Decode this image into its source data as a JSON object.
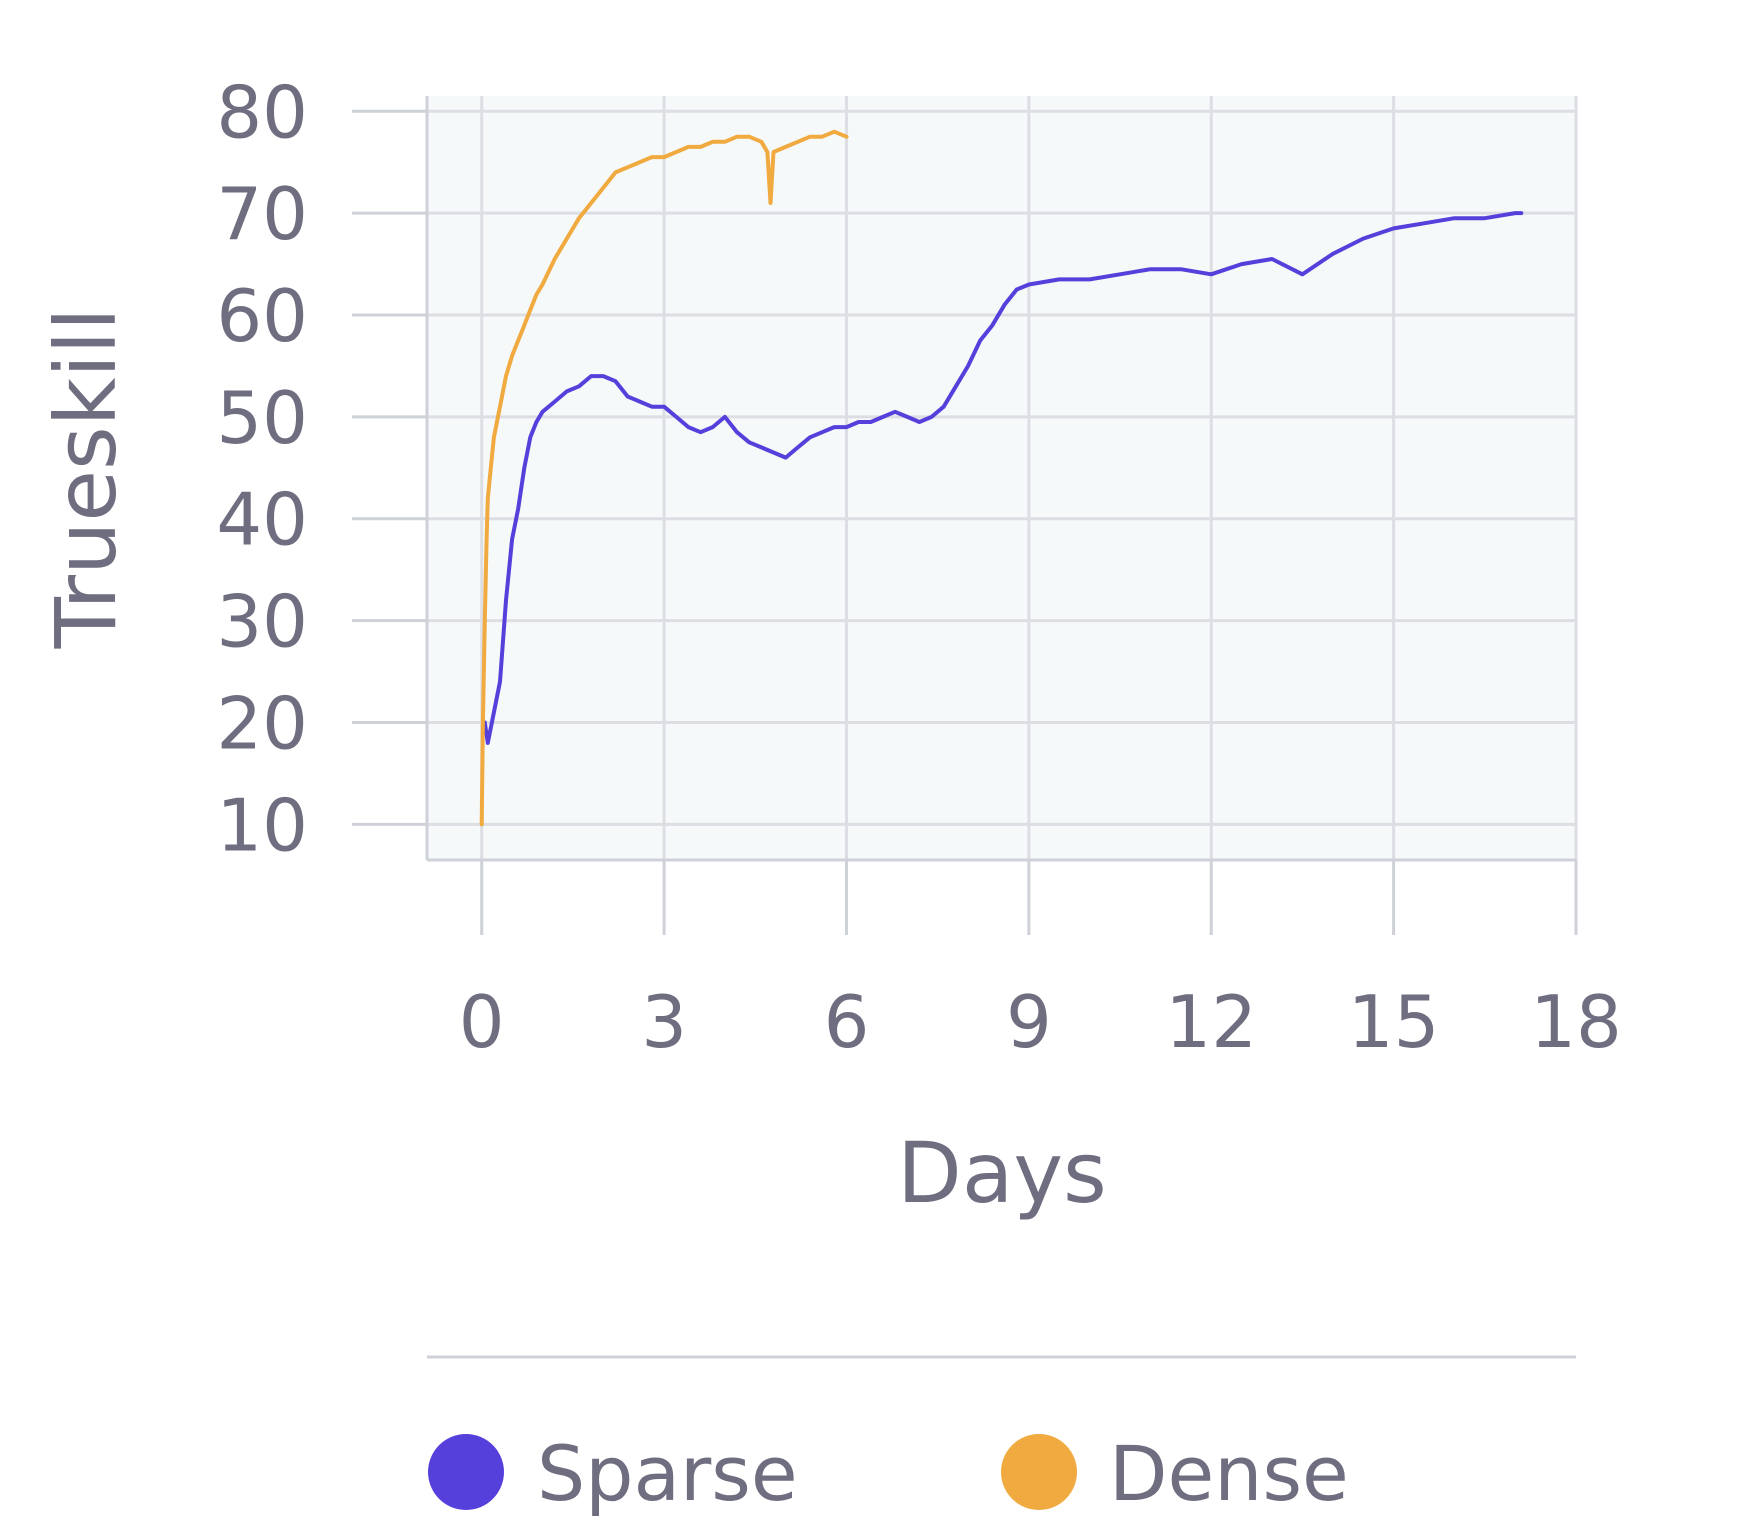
{
  "chart_data": {
    "type": "line",
    "title": "",
    "xlabel": "Days",
    "ylabel": "Trueskill",
    "xlim": [
      -0.9,
      18
    ],
    "ylim": [
      6.5,
      81.5
    ],
    "xticks": [
      "0",
      "3",
      "6",
      "9",
      "12",
      "15",
      "18"
    ],
    "yticks": [
      "10",
      "20",
      "30",
      "40",
      "50",
      "60",
      "70",
      "80"
    ],
    "grid": true,
    "legend_position": "bottom",
    "colors": {
      "sparse": "#5540db",
      "dense": "#f0aa3f",
      "plot_bg": "#f5f9fa"
    },
    "series": [
      {
        "name": "Sparse",
        "x": [
          0.05,
          0.1,
          0.2,
          0.3,
          0.4,
          0.5,
          0.6,
          0.7,
          0.8,
          0.9,
          1.0,
          1.2,
          1.4,
          1.6,
          1.8,
          2.0,
          2.2,
          2.4,
          2.6,
          2.8,
          3.0,
          3.2,
          3.4,
          3.6,
          3.8,
          4.0,
          4.2,
          4.4,
          4.6,
          4.8,
          5.0,
          5.2,
          5.4,
          5.6,
          5.8,
          6.0,
          6.2,
          6.4,
          6.6,
          6.8,
          7.0,
          7.2,
          7.4,
          7.6,
          7.8,
          8.0,
          8.2,
          8.4,
          8.6,
          8.8,
          9.0,
          9.5,
          10.0,
          10.5,
          11.0,
          11.5,
          12.0,
          12.5,
          13.0,
          13.5,
          14.0,
          14.5,
          15.0,
          15.5,
          16.0,
          16.5,
          17.0,
          17.1
        ],
        "values": [
          20,
          18,
          21,
          24,
          32,
          38,
          41,
          45,
          48,
          49.5,
          50.5,
          51.5,
          52.5,
          53,
          54,
          54,
          53.5,
          52,
          51.5,
          51,
          51,
          50,
          49,
          48.5,
          49,
          50,
          48.5,
          47.5,
          47,
          46.5,
          46,
          47,
          48,
          48.5,
          49,
          49,
          49.5,
          49.5,
          50,
          50.5,
          50,
          49.5,
          50,
          51,
          53,
          55,
          57.5,
          59,
          61,
          62.5,
          63,
          63.5,
          63.5,
          64,
          64.5,
          64.5,
          64,
          65,
          65.5,
          64,
          66,
          67.5,
          68.5,
          69,
          69.5,
          69.5,
          70,
          70
        ]
      },
      {
        "name": "Dense",
        "x": [
          0.0,
          0.02,
          0.05,
          0.08,
          0.1,
          0.15,
          0.2,
          0.3,
          0.4,
          0.5,
          0.6,
          0.7,
          0.8,
          0.9,
          1.0,
          1.2,
          1.4,
          1.6,
          1.8,
          2.0,
          2.2,
          2.4,
          2.6,
          2.8,
          3.0,
          3.2,
          3.4,
          3.6,
          3.8,
          4.0,
          4.2,
          4.4,
          4.6,
          4.7,
          4.75,
          4.8,
          5.0,
          5.2,
          5.4,
          5.6,
          5.8,
          6.0
        ],
        "values": [
          10,
          20,
          30,
          38,
          42,
          45,
          48,
          51,
          54,
          56,
          57.5,
          59,
          60.5,
          62,
          63,
          65.5,
          67.5,
          69.5,
          71,
          72.5,
          74,
          74.5,
          75,
          75.5,
          75.5,
          76,
          76.5,
          76.5,
          77,
          77,
          77.5,
          77.5,
          77,
          76,
          71,
          76,
          76.5,
          77,
          77.5,
          77.5,
          78,
          77.5
        ]
      }
    ]
  }
}
